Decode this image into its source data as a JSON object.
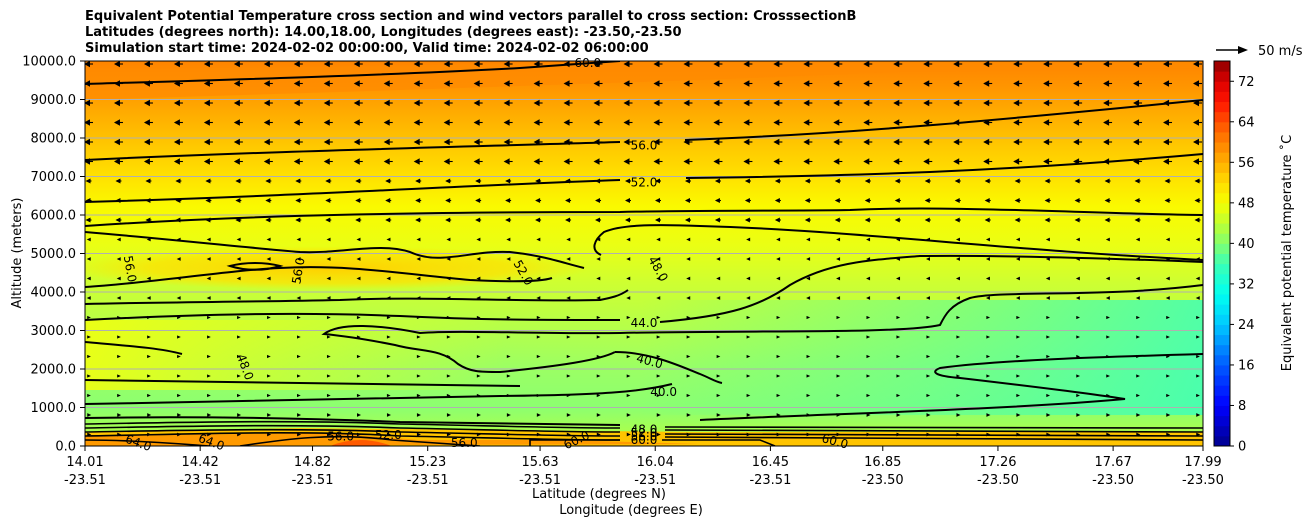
{
  "chart_data": {
    "type": "heatmap",
    "title_lines": [
      "Equivalent Potential Temperature cross section and wind vectors parallel to cross section: CrosssectionB",
      "Latitudes (degrees north): 14.00,18.00, Longitudes (degrees east): -23.50,-23.50",
      "Simulation start time: 2024-02-02 00:00:00, Valid time: 2024-02-02 06:00:00"
    ],
    "ylabel": "Altitude (meters)",
    "xlabel_lat": "Latitude (degrees N)",
    "xlabel_lon": "Longitude (degrees E)",
    "ylim": [
      0,
      10000
    ],
    "y_ticks": [
      "0.0",
      "1000.0",
      "2000.0",
      "3000.0",
      "4000.0",
      "5000.0",
      "6000.0",
      "7000.0",
      "8000.0",
      "9000.0",
      "10000.0"
    ],
    "y_tick_values": [
      0,
      1000,
      2000,
      3000,
      4000,
      5000,
      6000,
      7000,
      8000,
      9000,
      10000
    ],
    "x_ticks": [
      {
        "lat": "14.01",
        "lon": "-23.51"
      },
      {
        "lat": "14.42",
        "lon": "-23.51"
      },
      {
        "lat": "14.82",
        "lon": "-23.51"
      },
      {
        "lat": "15.23",
        "lon": "-23.51"
      },
      {
        "lat": "15.63",
        "lon": "-23.51"
      },
      {
        "lat": "16.04",
        "lon": "-23.51"
      },
      {
        "lat": "16.45",
        "lon": "-23.51"
      },
      {
        "lat": "16.85",
        "lon": "-23.50"
      },
      {
        "lat": "17.26",
        "lon": "-23.50"
      },
      {
        "lat": "17.67",
        "lon": "-23.50"
      },
      {
        "lat": "17.99",
        "lon": "-23.50"
      }
    ],
    "x_tick_values": [
      14.01,
      14.42,
      14.82,
      15.23,
      15.63,
      16.04,
      16.45,
      16.85,
      17.26,
      17.67,
      17.99
    ],
    "xlim": [
      14.01,
      17.99
    ],
    "colorbar": {
      "label": "Equivalent potential temperature ˚C",
      "ticks": [
        "0",
        "8",
        "16",
        "24",
        "32",
        "40",
        "48",
        "56",
        "64",
        "72"
      ],
      "tick_values": [
        0,
        8,
        16,
        24,
        32,
        40,
        48,
        56,
        64,
        72
      ],
      "range": [
        0,
        76
      ]
    },
    "quiver_key": "50 m/s",
    "contour_labels": [
      {
        "text": "60.0",
        "lat": 15.8,
        "alt": 9950,
        "rot": 0
      },
      {
        "text": "56.0",
        "lat": 16.0,
        "alt": 7800,
        "rot": 0
      },
      {
        "text": "52.0",
        "lat": 16.0,
        "alt": 6850,
        "rot": 0
      },
      {
        "text": "56.0",
        "lat": 14.17,
        "alt": 4600,
        "rot": 80
      },
      {
        "text": "56.0",
        "lat": 14.77,
        "alt": 4550,
        "rot": -80
      },
      {
        "text": "52.0",
        "lat": 15.57,
        "alt": 4500,
        "rot": 60
      },
      {
        "text": "48.0",
        "lat": 16.05,
        "alt": 4600,
        "rot": 60
      },
      {
        "text": "44.0",
        "lat": 16.0,
        "alt": 3200,
        "rot": 0
      },
      {
        "text": "48.0",
        "lat": 14.58,
        "alt": 2050,
        "rot": 70
      },
      {
        "text": "40.0",
        "lat": 16.02,
        "alt": 2200,
        "rot": 15
      },
      {
        "text": "40.0",
        "lat": 16.07,
        "alt": 1400,
        "rot": 0
      },
      {
        "text": "64.0",
        "lat": 14.2,
        "alt": 80,
        "rot": 20
      },
      {
        "text": "64.0",
        "lat": 14.46,
        "alt": 100,
        "rot": 20
      },
      {
        "text": "56.0",
        "lat": 14.92,
        "alt": 250,
        "rot": 0
      },
      {
        "text": "52.0",
        "lat": 15.09,
        "alt": 280,
        "rot": 0
      },
      {
        "text": "56.0",
        "lat": 15.36,
        "alt": 80,
        "rot": 0
      },
      {
        "text": "60.0",
        "lat": 15.76,
        "alt": 150,
        "rot": -25
      },
      {
        "text": "48.0",
        "lat": 16.0,
        "alt": 430,
        "rot": 0
      },
      {
        "text": "52.0",
        "lat": 16.0,
        "alt": 340,
        "rot": 0
      },
      {
        "text": "56.0",
        "lat": 16.0,
        "alt": 250,
        "rot": 0
      },
      {
        "text": "60.0",
        "lat": 16.0,
        "alt": 150,
        "rot": 0
      },
      {
        "text": "60.0",
        "lat": 16.68,
        "alt": 120,
        "rot": 15
      }
    ]
  }
}
